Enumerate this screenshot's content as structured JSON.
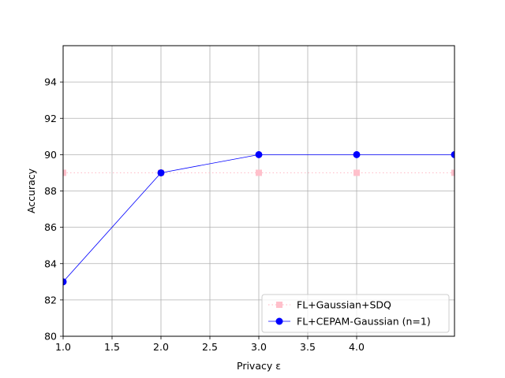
{
  "chart_data": {
    "type": "line",
    "title": "",
    "xlabel": "Privacy ε",
    "ylabel": "Accuracy",
    "xlim": [
      1.0,
      5.0
    ],
    "ylim": [
      80,
      96
    ],
    "xticks": [
      1.0,
      1.5,
      2.0,
      2.5,
      3.0,
      3.5,
      4.0
    ],
    "xtick_labels": [
      "1.0",
      "1.5",
      "2.0",
      "2.5",
      "3.0",
      "3.5",
      "4.0"
    ],
    "yticks": [
      80,
      82,
      84,
      86,
      88,
      90,
      92,
      94
    ],
    "ytick_labels": [
      "80",
      "82",
      "84",
      "86",
      "88",
      "90",
      "92",
      "94"
    ],
    "grid": true,
    "legend_position": "lower-right",
    "series": [
      {
        "name": "FL+Gaussian+SDQ",
        "x": [
          1,
          2,
          3,
          4,
          5
        ],
        "y": [
          89,
          89,
          89,
          89,
          89
        ],
        "color": "#ffc0cb",
        "line_style": "dotted",
        "marker": "square"
      },
      {
        "name": "FL+CEPAM-Gaussian (n=1)",
        "x": [
          1,
          2,
          3,
          4,
          5
        ],
        "y": [
          83,
          89,
          90,
          90,
          90
        ],
        "color": "#0000ff",
        "line_style": "solid",
        "marker": "circle"
      }
    ]
  }
}
